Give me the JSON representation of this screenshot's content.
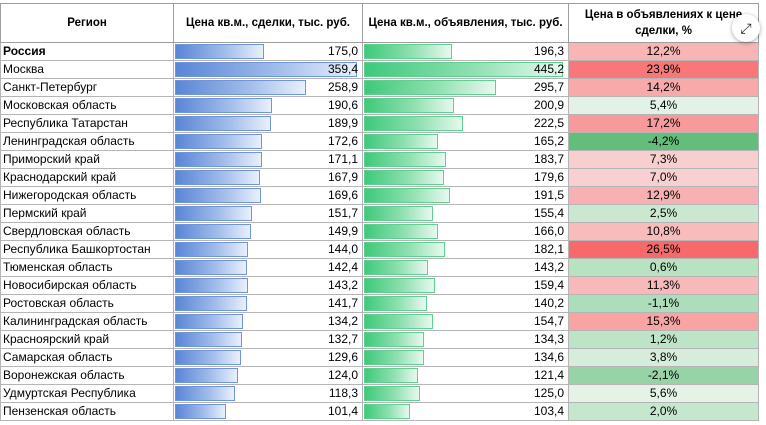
{
  "headers": {
    "region": "Регион",
    "deal_price": "Цена кв.м., сделки, тыс. руб.",
    "listing_price": "Цена кв.м., объявления, тыс. руб.",
    "markup": "Цена в объявлениях к цене сделки, %"
  },
  "colors": {
    "blue_bar": "#5a86d6",
    "green_bar": "#3ec97a",
    "red_strong": "#f8696b",
    "green_strong": "#63be7b"
  },
  "scale": {
    "deal_max": 359.4,
    "listing_max": 445.2
  },
  "expand_icon": "expand-arrows-icon",
  "rows": [
    {
      "region": "Россия",
      "deal": "175,0",
      "deal_val": 175.0,
      "listing": "196,3",
      "listing_val": 196.3,
      "markup": "12,2%",
      "markup_val": 12.2,
      "bold": true
    },
    {
      "region": "Москва",
      "deal": "359,4",
      "deal_val": 359.4,
      "listing": "445,2",
      "listing_val": 445.2,
      "markup": "23,9%",
      "markup_val": 23.9
    },
    {
      "region": "Санкт-Петербург",
      "deal": "258,9",
      "deal_val": 258.9,
      "listing": "295,7",
      "listing_val": 295.7,
      "markup": "14,2%",
      "markup_val": 14.2
    },
    {
      "region": "Московская область",
      "deal": "190,6",
      "deal_val": 190.6,
      "listing": "200,9",
      "listing_val": 200.9,
      "markup": "5,4%",
      "markup_val": 5.4
    },
    {
      "region": "Республика Татарстан",
      "deal": "189,9",
      "deal_val": 189.9,
      "listing": "222,5",
      "listing_val": 222.5,
      "markup": "17,2%",
      "markup_val": 17.2
    },
    {
      "region": "Ленинградская область",
      "deal": "172,6",
      "deal_val": 172.6,
      "listing": "165,2",
      "listing_val": 165.2,
      "markup": "-4,2%",
      "markup_val": -4.2
    },
    {
      "region": "Приморский край",
      "deal": "171,1",
      "deal_val": 171.1,
      "listing": "183,7",
      "listing_val": 183.7,
      "markup": "7,3%",
      "markup_val": 7.3
    },
    {
      "region": "Краснодарский край",
      "deal": "167,9",
      "deal_val": 167.9,
      "listing": "179,6",
      "listing_val": 179.6,
      "markup": "7,0%",
      "markup_val": 7.0
    },
    {
      "region": "Нижегородская область",
      "deal": "169,6",
      "deal_val": 169.6,
      "listing": "191,5",
      "listing_val": 191.5,
      "markup": "12,9%",
      "markup_val": 12.9
    },
    {
      "region": "Пермский край",
      "deal": "151,7",
      "deal_val": 151.7,
      "listing": "155,4",
      "listing_val": 155.4,
      "markup": "2,5%",
      "markup_val": 2.5
    },
    {
      "region": "Свердловская область",
      "deal": "149,9",
      "deal_val": 149.9,
      "listing": "166,0",
      "listing_val": 166.0,
      "markup": "10,8%",
      "markup_val": 10.8
    },
    {
      "region": "Республика Башкортостан",
      "deal": "144,0",
      "deal_val": 144.0,
      "listing": "182,1",
      "listing_val": 182.1,
      "markup": "26,5%",
      "markup_val": 26.5
    },
    {
      "region": "Тюменская область",
      "deal": "142,4",
      "deal_val": 142.4,
      "listing": "143,2",
      "listing_val": 143.2,
      "markup": "0,6%",
      "markup_val": 0.6
    },
    {
      "region": "Новосибирская область",
      "deal": "143,2",
      "deal_val": 143.2,
      "listing": "159,4",
      "listing_val": 159.4,
      "markup": "11,3%",
      "markup_val": 11.3
    },
    {
      "region": "Ростовская область",
      "deal": "141,7",
      "deal_val": 141.7,
      "listing": "140,2",
      "listing_val": 140.2,
      "markup": "-1,1%",
      "markup_val": -1.1
    },
    {
      "region": "Калининградская область",
      "deal": "134,2",
      "deal_val": 134.2,
      "listing": "154,7",
      "listing_val": 154.7,
      "markup": "15,3%",
      "markup_val": 15.3
    },
    {
      "region": "Красноярский край",
      "deal": "132,7",
      "deal_val": 132.7,
      "listing": "134,3",
      "listing_val": 134.3,
      "markup": "1,2%",
      "markup_val": 1.2
    },
    {
      "region": "Самарская область",
      "deal": "129,6",
      "deal_val": 129.6,
      "listing": "134,6",
      "listing_val": 134.6,
      "markup": "3,8%",
      "markup_val": 3.8
    },
    {
      "region": "Воронежская область",
      "deal": "124,0",
      "deal_val": 124.0,
      "listing": "121,4",
      "listing_val": 121.4,
      "markup": "-2,1%",
      "markup_val": -2.1
    },
    {
      "region": "Удмуртская Республика",
      "deal": "118,3",
      "deal_val": 118.3,
      "listing": "125,0",
      "listing_val": 125.0,
      "markup": "5,6%",
      "markup_val": 5.6
    },
    {
      "region": "Пензенская область",
      "deal": "101,4",
      "deal_val": 101.4,
      "listing": "103,4",
      "listing_val": 103.4,
      "markup": "2,0%",
      "markup_val": 2.0
    }
  ]
}
